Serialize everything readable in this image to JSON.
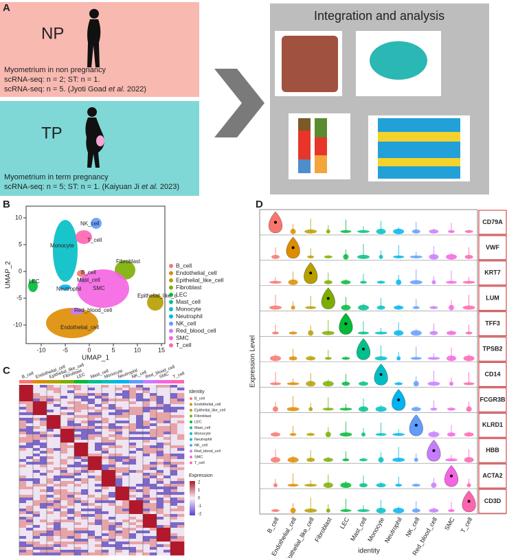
{
  "panel_a": {
    "label": "A",
    "np": {
      "title": "NP",
      "line1": "Myometrium in non pregnancy",
      "line2": "scRNA-seq: n = 2; ST: n = 1.",
      "ref": [
        "scRNA-seq: n = 5. (Jyoti Goad ",
        "et al.",
        " 2022)"
      ]
    },
    "tp": {
      "title": "TP",
      "line1": "Myometrium in term pregnancy",
      "ref": [
        "scRNA-seq: n = 5; ST: n = 1. (Kaiyuan Ji ",
        "et al.",
        " 2023)"
      ]
    },
    "integration_title": "Integration and analysis"
  },
  "panel_b": {
    "label": "B",
    "x_label": "UMAP_1",
    "y_label": "UMAP_2",
    "x_ticks": [
      "-10",
      "-5",
      "0",
      "5",
      "10",
      "15"
    ],
    "y_ticks": [
      "10",
      "5",
      "0",
      "-5",
      "-10"
    ],
    "cluster_labels": [
      "NK_cell",
      "T_cell",
      "Monocyte",
      "B_cell",
      "Mast_cell",
      "Fibroblast",
      "LEC",
      "Neutrophil",
      "SMC",
      "Epithelial_like_c",
      "Red_blood_cell",
      "Endothelial_cell"
    ],
    "legend": [
      "B_cell",
      "Endothelial_cell",
      "Epithelial_like_cell",
      "Fibroblast",
      "LEC",
      "Mast_cell",
      "Monocyte",
      "Neutrophil",
      "NK_cell",
      "Red_blood_cell",
      "SMC",
      "T_cell"
    ]
  },
  "panel_c": {
    "label": "C",
    "legend_title": "Identity",
    "expression_title": "Expression",
    "expression_ticks": [
      "2",
      "1",
      "0",
      "-1",
      "-2"
    ]
  },
  "panel_d": {
    "label": "D",
    "y_label": "Expression Level",
    "x_label": "identity",
    "genes": [
      "CD79A",
      "VWF",
      "KRT7",
      "LUM",
      "TFF3",
      "TPSB2",
      "CD14",
      "FCGR3B",
      "KLRD1",
      "HBB",
      "ACTA2",
      "CD3D"
    ]
  }
}
